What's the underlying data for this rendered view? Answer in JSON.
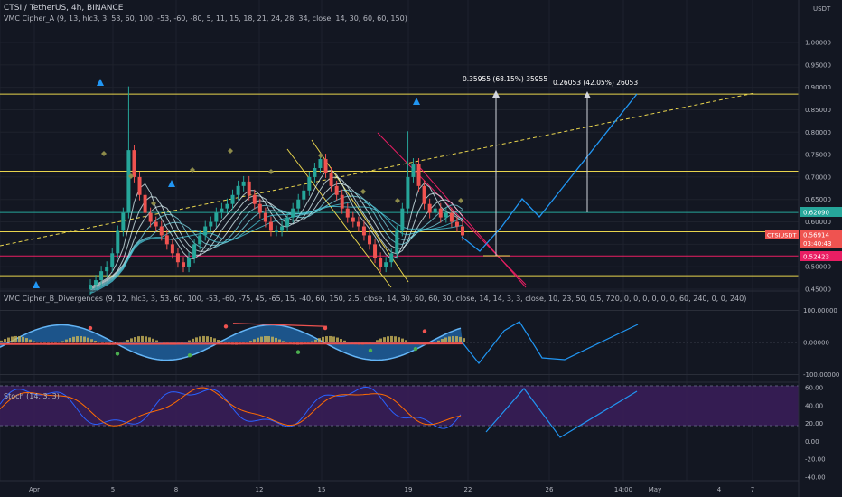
{
  "header": {
    "symbol_line": "CTSI / TetherUS, 4h, BINANCE",
    "indicator_a": "VMC Cipher_A (9, 13, hlc3, 3, 53, 60, 100, -53, -60, -80, 5, 11, 15, 18, 21, 24, 28, 34, close, 14, 30, 60, 60, 150)",
    "indicator_b": "VMC Cipher_B_Divergences (9, 12, hlc3, 3, 53, 60, 100, -53, -60, -75, 45, -65, 15, -40, 60, 150, 2.5, close, 14, 30, 60, 60, 30, close, 14, 14, 3, 3, close, 10, 23, 50, 0.5, 720, 0, 0, 0, 0, 0, 0, 60, 240, 0, 0, 240)",
    "stoch": "Stoch (14, 3, 3)",
    "currency": "USDT"
  },
  "price_axis": {
    "ticks": [
      "1.00000",
      "0.95000",
      "0.90000",
      "0.85000",
      "0.80000",
      "0.75000",
      "0.70000",
      "0.65000",
      "0.60000",
      "0.55000",
      "0.50000",
      "0.45000"
    ],
    "label_current_value": "0.62090",
    "label_ctsi_symbol": "CTSIUSDT",
    "label_ctsi_value": "0.56914",
    "label_countdown": "03:40:43",
    "label_support_value": "0.52423"
  },
  "cipherb_axis": {
    "ticks": [
      "100.00000",
      "0.00000",
      "-100.00000"
    ]
  },
  "stoch_axis": {
    "ticks": [
      "60.00",
      "40.00",
      "20.00",
      "0.00",
      "-20.00",
      "-40.00"
    ]
  },
  "time_axis": {
    "ticks": [
      "Apr",
      "5",
      "8",
      "12",
      "15",
      "19",
      "22",
      "26",
      "14:00",
      "May",
      "4",
      "7"
    ]
  },
  "measurements": [
    {
      "text": "0.35955 (68.15%) 35955"
    },
    {
      "text": "0.26053 (42.05%) 26053"
    }
  ],
  "colors": {
    "background": "#131722",
    "yellow": "#e8d44d",
    "cyan": "#26a69a",
    "magenta": "#e91e63",
    "blue": "#2196f3",
    "up": "#26a69a",
    "down": "#ef5350",
    "purple": "#4a1d6e"
  },
  "chart_data": {
    "type": "candlestick",
    "title": "CTSI / TetherUS, 4h, BINANCE",
    "ylabel": "USDT",
    "ylim": [
      0.44,
      1.05
    ],
    "price_series_close": [
      0.46,
      0.47,
      0.49,
      0.5,
      0.53,
      0.58,
      0.62,
      0.76,
      0.7,
      0.66,
      0.62,
      0.6,
      0.59,
      0.57,
      0.55,
      0.53,
      0.51,
      0.5,
      0.52,
      0.55,
      0.57,
      0.59,
      0.6,
      0.62,
      0.63,
      0.64,
      0.66,
      0.68,
      0.69,
      0.66,
      0.64,
      0.62,
      0.6,
      0.58,
      0.58,
      0.59,
      0.61,
      0.63,
      0.65,
      0.67,
      0.7,
      0.72,
      0.74,
      0.71,
      0.68,
      0.66,
      0.63,
      0.61,
      0.6,
      0.59,
      0.57,
      0.55,
      0.52,
      0.5,
      0.51,
      0.53,
      0.58,
      0.63,
      0.7,
      0.73,
      0.68,
      0.64,
      0.62,
      0.63,
      0.61,
      0.62,
      0.6,
      0.59,
      0.57
    ],
    "horizontal_levels": [
      {
        "value": 0.885,
        "color": "yellow"
      },
      {
        "value": 0.713,
        "color": "yellow"
      },
      {
        "value": 0.621,
        "color": "cyan"
      },
      {
        "value": 0.578,
        "color": "yellow"
      },
      {
        "value": 0.524,
        "color": "magenta"
      },
      {
        "value": 0.48,
        "color": "yellow"
      }
    ],
    "cipherb_ylim": [
      -110,
      110
    ],
    "stoch_ylim": [
      -45,
      65
    ],
    "stoch_band": [
      20,
      60
    ]
  }
}
